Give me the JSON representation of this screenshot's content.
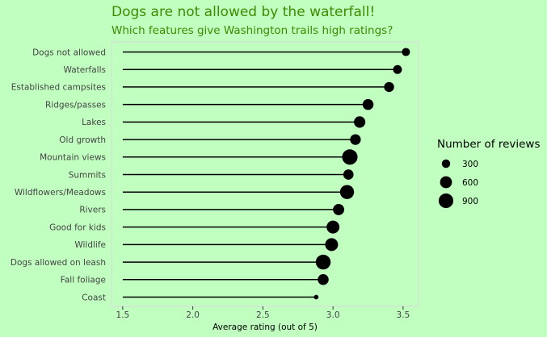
{
  "chart_data": {
    "type": "lollipop",
    "title": "Dogs are not allowed by the waterfall!",
    "subtitle": "Which features give Washington trails high ratings?",
    "xlabel": "Average rating (out of 5)",
    "ylabel": "",
    "xlim": [
      1.42,
      3.61
    ],
    "baseline": 1.5,
    "x_ticks": [
      1.5,
      2.0,
      2.5,
      3.0,
      3.5
    ],
    "x_tick_labels": [
      "1.5",
      "2.0",
      "2.5",
      "3.0",
      "3.5"
    ],
    "grid": false,
    "legend": {
      "title": "Number of reviews",
      "position": "right",
      "entries": [
        {
          "label": "300",
          "value": 300
        },
        {
          "label": "600",
          "value": 600
        },
        {
          "label": "900",
          "value": 900
        }
      ]
    },
    "categories": [
      "Dogs not allowed",
      "Waterfalls",
      "Established campsites",
      "Ridges/passes",
      "Lakes",
      "Old growth",
      "Mountain views",
      "Summits",
      "Wildflowers/Meadows",
      "Rivers",
      "Good for kids",
      "Wildlife",
      "Dogs allowed on leash",
      "Fall foliage",
      "Coast"
    ],
    "values": [
      3.52,
      3.46,
      3.4,
      3.25,
      3.19,
      3.16,
      3.12,
      3.11,
      3.1,
      3.04,
      3.0,
      2.99,
      2.93,
      2.93,
      2.88
    ],
    "reviews": [
      280,
      330,
      420,
      500,
      550,
      480,
      1000,
      440,
      830,
      530,
      700,
      700,
      930,
      500,
      90
    ],
    "colors": {
      "background": "#c1ffc1",
      "title": "#3a8c00",
      "lines": "#000000",
      "points": "#000000",
      "panel_border": "#d9d9d9"
    }
  }
}
